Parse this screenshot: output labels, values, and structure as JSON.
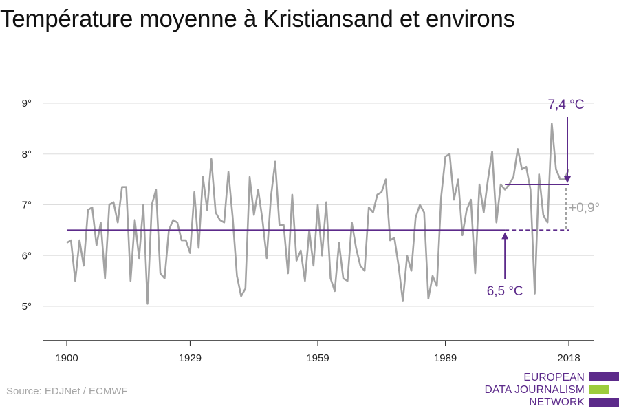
{
  "title": "Température moyenne à Kristiansand et environs",
  "source": "Source: EDJNet / ECMWF",
  "logo": {
    "lines": [
      "EUROPEAN",
      "DATA JOURNALISM",
      "NETWORK"
    ],
    "colors": [
      "#5c2a8a",
      "#9ccc3c",
      "#5c2a8a"
    ]
  },
  "colors": {
    "series": "#a3a3a3",
    "baseline": "#5c2a8a",
    "annotation": "#5c2a8a",
    "diff": "#a3a3a3",
    "grid": "#dddddd",
    "axis": "#222222"
  },
  "chart_data": {
    "type": "line",
    "title": "Température moyenne à Kristiansand et environs",
    "xlabel": "",
    "ylabel": "",
    "xlim": [
      1900,
      2018
    ],
    "ylim": [
      4.3,
      9.3
    ],
    "x_ticks": [
      1900,
      1929,
      1959,
      1989,
      2018
    ],
    "y_ticks": [
      5,
      6,
      7,
      8,
      9
    ],
    "y_tick_labels": [
      "5°",
      "6°",
      "7°",
      "8°",
      "9°"
    ],
    "grid": true,
    "series": [
      {
        "x_start": 1900,
        "x_end": 2018,
        "values": [
          6.25,
          6.3,
          5.5,
          6.3,
          5.8,
          6.9,
          6.95,
          6.2,
          6.65,
          5.55,
          7.0,
          7.05,
          6.65,
          7.35,
          7.35,
          5.5,
          6.7,
          5.95,
          7.0,
          5.05,
          7.0,
          7.3,
          5.65,
          5.55,
          6.5,
          6.7,
          6.65,
          6.3,
          6.3,
          6.05,
          7.25,
          6.15,
          7.55,
          6.9,
          7.9,
          6.85,
          6.7,
          6.65,
          7.65,
          6.75,
          5.6,
          5.2,
          5.35,
          7.55,
          6.8,
          7.3,
          6.7,
          5.95,
          7.15,
          7.85,
          6.6,
          6.6,
          5.65,
          7.2,
          5.9,
          6.1,
          5.5,
          6.5,
          5.8,
          7.0,
          6.0,
          7.05,
          5.55,
          5.3,
          6.25,
          5.55,
          5.5,
          6.65,
          6.15,
          5.8,
          5.7,
          6.95,
          6.85,
          7.2,
          7.25,
          7.5,
          6.3,
          6.35,
          5.8,
          5.1,
          6.0,
          5.7,
          6.75,
          7.0,
          6.85,
          5.15,
          5.6,
          5.4,
          7.15,
          7.95,
          8.0,
          7.1,
          7.5,
          6.4,
          6.9,
          7.1,
          5.65,
          7.4,
          6.85,
          7.5,
          8.05,
          6.65,
          7.4,
          7.3,
          7.4,
          7.55,
          8.1,
          7.7,
          7.75,
          7.3,
          5.25,
          7.6,
          6.8,
          6.65,
          8.6,
          7.7,
          7.5,
          7.5,
          7.7
        ]
      }
    ],
    "reference_lines": [
      {
        "label": "6,5 °C",
        "value": 6.5,
        "from": 1900,
        "to": 2018
      },
      {
        "label": "7,4 °C",
        "value": 7.4,
        "from": 2003,
        "to": 2018
      }
    ],
    "difference_label": "+0,9°",
    "annotations": [
      "7,4 °C",
      "6,5 °C",
      "+0,9°"
    ]
  }
}
